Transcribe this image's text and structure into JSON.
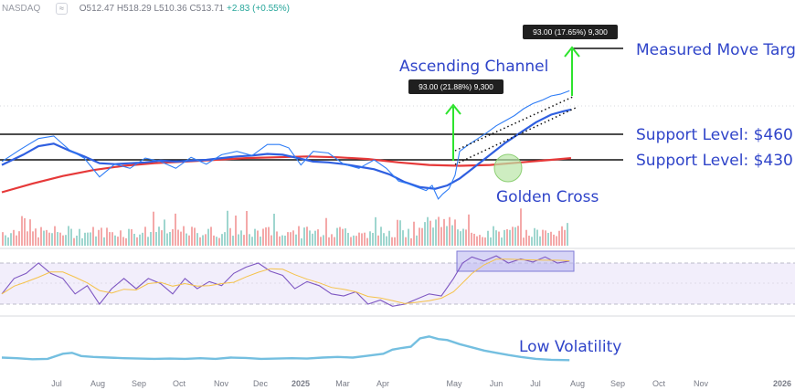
{
  "header": {
    "symbol": "NASDAQ",
    "toggle_icon": "compare-icon",
    "open": "O512.47",
    "high": "H518.29",
    "low": "L510.36",
    "close": "C513.71",
    "change": "+2.83 (+0.55%)"
  },
  "annotations": {
    "channel_label": "Ascending Channel",
    "measured_move_label": "Measured Move Target",
    "support_upper_label": "Support Level: $460",
    "support_lower_label": "Support Level: $430",
    "golden_cross_label": "Golden Cross",
    "low_vol_label": "Low Volatility",
    "box_channel": "93.00 (21.88%) 9,300",
    "box_target": "93.00 (17.65%) 9,300"
  },
  "colors": {
    "price_line": "#2f7df6",
    "ma_blue": "#2f5fe0",
    "ma_red": "#e63939",
    "annotation_text": "#2f44c9",
    "arrow_green": "#2ee32e",
    "vol_up": "#9fd6cf",
    "vol_down": "#f4a9a9",
    "rsi": "#7e57c2",
    "rsi_ma": "#f5c24a",
    "volatility": "#74bfe0"
  },
  "chart_data": {
    "type": "line",
    "x_ticks": [
      "Jul",
      "Aug",
      "Sep",
      "Oct",
      "Nov",
      "Dec",
      "2025",
      "Mar",
      "Apr",
      "May",
      "Jun",
      "Jul",
      "Aug",
      "Sep",
      "Oct",
      "Nov",
      "2026"
    ],
    "price_y_range": [
      375,
      565
    ],
    "support_upper": 460,
    "support_lower": 430,
    "measured_move_target": 521,
    "channel_move": 93.0,
    "price_series": [
      [
        0,
        428
      ],
      [
        12,
        442
      ],
      [
        24,
        455
      ],
      [
        34,
        458
      ],
      [
        44,
        442
      ],
      [
        54,
        432
      ],
      [
        64,
        410
      ],
      [
        74,
        425
      ],
      [
        84,
        420
      ],
      [
        94,
        432
      ],
      [
        104,
        428
      ],
      [
        114,
        420
      ],
      [
        124,
        433
      ],
      [
        134,
        425
      ],
      [
        144,
        436
      ],
      [
        154,
        440
      ],
      [
        164,
        435
      ],
      [
        174,
        448
      ],
      [
        182,
        448
      ],
      [
        188,
        444
      ],
      [
        196,
        424
      ],
      [
        204,
        440
      ],
      [
        214,
        438
      ],
      [
        224,
        425
      ],
      [
        234,
        420
      ],
      [
        244,
        430
      ],
      [
        252,
        420
      ],
      [
        260,
        405
      ],
      [
        266,
        402
      ],
      [
        272,
        398
      ],
      [
        278,
        394
      ],
      [
        282,
        400
      ],
      [
        286,
        384
      ],
      [
        289,
        390
      ],
      [
        293,
        396
      ],
      [
        297,
        412
      ],
      [
        300,
        440
      ],
      [
        306,
        448
      ],
      [
        312,
        455
      ],
      [
        318,
        462
      ],
      [
        324,
        470
      ],
      [
        330,
        476
      ],
      [
        336,
        482
      ],
      [
        342,
        490
      ],
      [
        348,
        496
      ],
      [
        354,
        500
      ],
      [
        360,
        505
      ],
      [
        366,
        507
      ],
      [
        372,
        511
      ]
    ],
    "ma_blue_series": [
      [
        0,
        424
      ],
      [
        14,
        436
      ],
      [
        24,
        446
      ],
      [
        34,
        449
      ],
      [
        44,
        441
      ],
      [
        54,
        434
      ],
      [
        64,
        426
      ],
      [
        74,
        425
      ],
      [
        84,
        426
      ],
      [
        94,
        427
      ],
      [
        104,
        429
      ],
      [
        114,
        428
      ],
      [
        124,
        429
      ],
      [
        134,
        430
      ],
      [
        144,
        432
      ],
      [
        154,
        434
      ],
      [
        164,
        435
      ],
      [
        174,
        437
      ],
      [
        184,
        436
      ],
      [
        194,
        432
      ],
      [
        204,
        428
      ],
      [
        214,
        427
      ],
      [
        224,
        425
      ],
      [
        234,
        422
      ],
      [
        244,
        419
      ],
      [
        254,
        413
      ],
      [
        264,
        404
      ],
      [
        274,
        398
      ],
      [
        284,
        396
      ],
      [
        292,
        400
      ],
      [
        300,
        408
      ],
      [
        310,
        422
      ],
      [
        320,
        436
      ],
      [
        330,
        450
      ],
      [
        340,
        462
      ],
      [
        350,
        474
      ],
      [
        360,
        483
      ],
      [
        368,
        487
      ],
      [
        373,
        489
      ]
    ],
    "ma_red_series": [
      [
        0,
        392
      ],
      [
        20,
        402
      ],
      [
        40,
        411
      ],
      [
        60,
        418
      ],
      [
        80,
        423
      ],
      [
        100,
        426
      ],
      [
        120,
        428
      ],
      [
        140,
        430
      ],
      [
        160,
        432
      ],
      [
        180,
        433
      ],
      [
        200,
        434
      ],
      [
        220,
        433
      ],
      [
        240,
        431
      ],
      [
        260,
        427
      ],
      [
        280,
        424
      ],
      [
        300,
        423
      ],
      [
        320,
        424
      ],
      [
        340,
        427
      ],
      [
        360,
        430
      ],
      [
        373,
        432
      ]
    ],
    "rsi_y_range": [
      15,
      85
    ],
    "rsi_series": [
      [
        0,
        40
      ],
      [
        8,
        55
      ],
      [
        16,
        60
      ],
      [
        24,
        70
      ],
      [
        32,
        60
      ],
      [
        40,
        55
      ],
      [
        48,
        40
      ],
      [
        56,
        48
      ],
      [
        64,
        30
      ],
      [
        72,
        45
      ],
      [
        80,
        55
      ],
      [
        88,
        45
      ],
      [
        96,
        55
      ],
      [
        104,
        50
      ],
      [
        112,
        40
      ],
      [
        120,
        55
      ],
      [
        128,
        45
      ],
      [
        136,
        52
      ],
      [
        144,
        48
      ],
      [
        152,
        60
      ],
      [
        160,
        66
      ],
      [
        168,
        70
      ],
      [
        176,
        62
      ],
      [
        184,
        58
      ],
      [
        192,
        45
      ],
      [
        200,
        52
      ],
      [
        208,
        48
      ],
      [
        216,
        40
      ],
      [
        224,
        38
      ],
      [
        232,
        42
      ],
      [
        240,
        30
      ],
      [
        248,
        34
      ],
      [
        256,
        28
      ],
      [
        264,
        30
      ],
      [
        272,
        35
      ],
      [
        280,
        40
      ],
      [
        288,
        38
      ],
      [
        296,
        55
      ],
      [
        302,
        70
      ],
      [
        308,
        76
      ],
      [
        316,
        72
      ],
      [
        324,
        77
      ],
      [
        332,
        70
      ],
      [
        340,
        74
      ],
      [
        348,
        71
      ],
      [
        356,
        76
      ],
      [
        364,
        70
      ],
      [
        372,
        72
      ]
    ],
    "volatility_series": [
      [
        0,
        30
      ],
      [
        10,
        28
      ],
      [
        20,
        25
      ],
      [
        30,
        26
      ],
      [
        40,
        42
      ],
      [
        46,
        45
      ],
      [
        52,
        35
      ],
      [
        60,
        32
      ],
      [
        70,
        30
      ],
      [
        80,
        28
      ],
      [
        90,
        27
      ],
      [
        100,
        26
      ],
      [
        110,
        27
      ],
      [
        120,
        26
      ],
      [
        130,
        28
      ],
      [
        140,
        26
      ],
      [
        150,
        30
      ],
      [
        160,
        29
      ],
      [
        170,
        26
      ],
      [
        180,
        27
      ],
      [
        190,
        28
      ],
      [
        200,
        27
      ],
      [
        210,
        30
      ],
      [
        220,
        32
      ],
      [
        230,
        30
      ],
      [
        240,
        36
      ],
      [
        250,
        42
      ],
      [
        256,
        55
      ],
      [
        262,
        60
      ],
      [
        268,
        64
      ],
      [
        274,
        90
      ],
      [
        280,
        96
      ],
      [
        286,
        88
      ],
      [
        292,
        85
      ],
      [
        300,
        72
      ],
      [
        308,
        62
      ],
      [
        316,
        52
      ],
      [
        324,
        45
      ],
      [
        332,
        38
      ],
      [
        340,
        32
      ],
      [
        350,
        26
      ],
      [
        360,
        23
      ],
      [
        372,
        22
      ]
    ]
  }
}
